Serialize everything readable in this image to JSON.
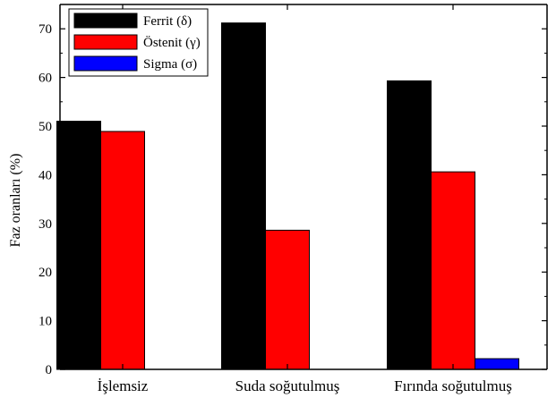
{
  "chart_data": {
    "type": "bar",
    "title": "",
    "xlabel": "",
    "ylabel": "Faz oranları (%)",
    "categories": [
      "İşlemsiz",
      "Suda soğutulmuş",
      "Fırında soğutulmuş"
    ],
    "series": [
      {
        "name": "Ferrit (δ)",
        "color": "#000000",
        "values": [
          51.0,
          71.2,
          59.3
        ]
      },
      {
        "name": "Östenit (γ)",
        "color": "#ff0000",
        "values": [
          48.9,
          28.6,
          40.6
        ]
      },
      {
        "name": "Sigma (σ)",
        "color": "#0000ff",
        "values": [
          0,
          0,
          2.2
        ]
      }
    ],
    "ylim": [
      0,
      75
    ],
    "yticks": [
      0,
      10,
      20,
      30,
      40,
      50,
      60,
      70
    ],
    "grid": false,
    "legend_position": "top-left"
  }
}
